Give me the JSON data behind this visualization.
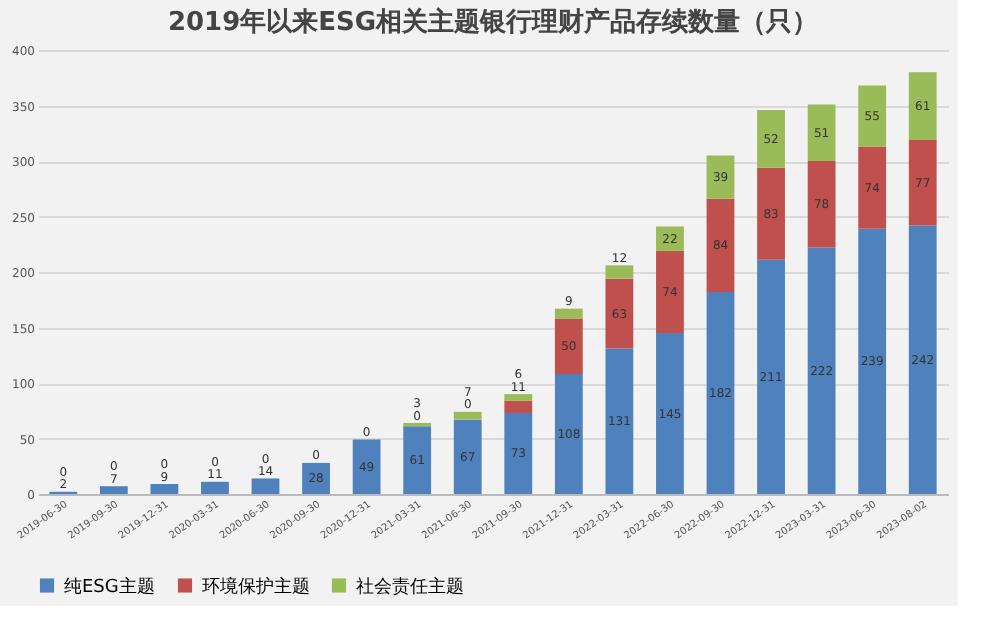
{
  "chart_data": {
    "type": "bar",
    "title": "2019年以来ESG相关主题银行理财产品存续数量（只）",
    "stacked": true,
    "grid": "y",
    "legend": "bottom",
    "categories": [
      "2019-06-30",
      "2019-09-30",
      "2019-12-31",
      "2020-03-31",
      "2020-06-30",
      "2020-09-30",
      "2020-12-31",
      "2021-03-31",
      "2021-06-30",
      "2021-09-30",
      "2021-12-31",
      "2022-03-31",
      "2022-06-30",
      "2022-09-30",
      "2022-12-31",
      "2023-03-31",
      "2023-06-30",
      "2023-08-02"
    ],
    "ylim": [
      0,
      400
    ],
    "yticks": [
      0,
      50,
      100,
      150,
      200,
      250,
      300,
      350,
      400
    ],
    "series": [
      {
        "name": "纯ESG主题",
        "color": "#4f81bd",
        "values": [
          2,
          7,
          9,
          11,
          14,
          28,
          49,
          61,
          67,
          73,
          108,
          131,
          145,
          182,
          211,
          222,
          239,
          242
        ],
        "value_labels": [
          "2",
          "7",
          "9",
          "11",
          "14",
          "28",
          "49",
          "61",
          "67",
          "73",
          "108",
          "131",
          "145",
          "182",
          "211",
          "222",
          "239",
          "242"
        ]
      },
      {
        "name": "环境保护主题",
        "color": "#c0504d",
        "values": [
          0,
          0,
          0,
          0,
          0,
          0,
          0,
          0,
          0,
          11,
          50,
          63,
          74,
          84,
          83,
          78,
          74,
          77
        ],
        "value_labels": [
          "0",
          "0",
          "0",
          "0",
          "0",
          "0",
          "0",
          "0",
          "0",
          "11",
          "50",
          "63",
          "74",
          "84",
          "83",
          "78",
          "74",
          "77"
        ]
      },
      {
        "name": "社会责任主题",
        "color": "#9bbb59",
        "values": [
          0,
          0,
          0,
          0,
          0,
          0,
          0,
          3,
          7,
          6,
          9,
          12,
          22,
          39,
          52,
          51,
          55,
          61
        ],
        "value_labels": [
          null,
          null,
          null,
          null,
          null,
          null,
          null,
          "3",
          "7",
          "6",
          "9",
          "12",
          "22",
          "39",
          "52",
          "51",
          "55",
          "61"
        ]
      }
    ]
  }
}
